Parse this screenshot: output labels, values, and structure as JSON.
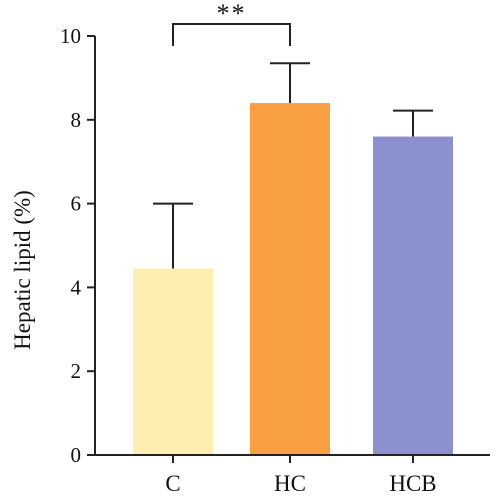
{
  "chart_data": {
    "type": "bar",
    "categories": [
      "C",
      "HC",
      "HCB"
    ],
    "values": [
      4.45,
      8.4,
      7.6
    ],
    "errors": [
      1.55,
      0.95,
      0.62
    ],
    "colors": [
      "#fcefb0",
      "#f9a043",
      "#8b91ce"
    ],
    "ylabel": "Hepatic lipid (%)",
    "xlabel": "",
    "ylim": [
      0,
      10
    ],
    "yticks": [
      0,
      2,
      4,
      6,
      8,
      10
    ],
    "grid": false,
    "significance": [
      {
        "from": "C",
        "to": "HC",
        "label": "**"
      }
    ]
  }
}
